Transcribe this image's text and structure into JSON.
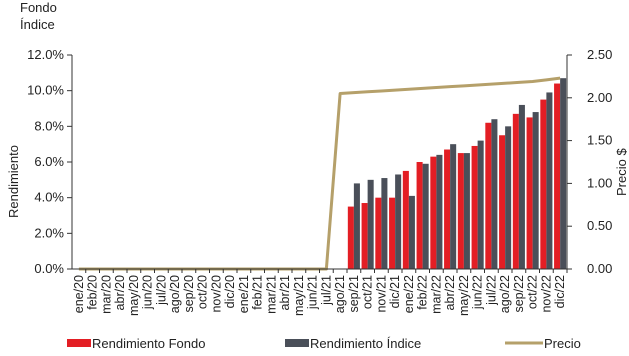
{
  "chart_data": {
    "type": "bar+line",
    "top_left_label_line1": "Fondo",
    "top_left_label_line2": "Índice",
    "ylabel_left": "Rendimiento",
    "ylabel_right": "Precio $",
    "y_left_ticks": [
      "0.0%",
      "2.0%",
      "4.0%",
      "6.0%",
      "8.0%",
      "10.0%",
      "12.0%"
    ],
    "y_right_ticks": [
      "0.00",
      "0.50",
      "1.00",
      "1.50",
      "2.00",
      "2.50"
    ],
    "ylim_left": [
      0,
      12
    ],
    "ylim_right": [
      0,
      2.5
    ],
    "categories": [
      "ene/20",
      "feb/20",
      "mar/20",
      "abr/20",
      "may/20",
      "jun/20",
      "jul/20",
      "ago/20",
      "sep/20",
      "oct/20",
      "nov/20",
      "dic/20",
      "ene/21",
      "feb/21",
      "mar/21",
      "abr/21",
      "may/21",
      "jun/21",
      "jul/21",
      "ago/21",
      "sep/21",
      "oct/21",
      "nov/21",
      "dic/21",
      "ene/22",
      "feb/22",
      "mar/22",
      "abr/22",
      "may/22",
      "jun/22",
      "jul/22",
      "ago/22",
      "sep/22",
      "oct/22",
      "nov/22",
      "dic/22"
    ],
    "series": [
      {
        "name": "Rendimiento Fondo",
        "type": "bar",
        "axis": "left",
        "color": "#e31e24",
        "values": [
          0,
          0,
          0,
          0,
          0,
          0,
          0,
          0,
          0,
          0,
          0,
          0,
          0,
          0,
          0,
          0,
          0,
          0,
          0,
          0,
          3.5,
          3.7,
          4.0,
          4.0,
          5.5,
          6.0,
          6.3,
          6.7,
          6.5,
          6.9,
          8.2,
          7.5,
          8.7,
          8.5,
          9.5,
          10.4
        ]
      },
      {
        "name": "Rendimiento Índice",
        "type": "bar",
        "axis": "left",
        "color": "#4a4f59",
        "values": [
          0,
          0,
          0,
          0,
          0,
          0,
          0,
          0,
          0,
          0,
          0,
          0,
          0,
          0,
          0,
          0,
          0,
          0,
          0,
          0,
          4.8,
          5.0,
          5.1,
          5.3,
          4.1,
          5.9,
          6.4,
          7.0,
          6.5,
          7.2,
          8.4,
          8.0,
          9.2,
          8.8,
          9.9,
          10.7
        ]
      },
      {
        "name": "Precio",
        "type": "line",
        "axis": "right",
        "color": "#b5a06a",
        "values": [
          0,
          0,
          0,
          0,
          0,
          0,
          0,
          0,
          0,
          0,
          0,
          0,
          0,
          0,
          0,
          0,
          0,
          0,
          0,
          2.05,
          2.06,
          2.07,
          2.08,
          2.09,
          2.1,
          2.11,
          2.12,
          2.13,
          2.14,
          2.15,
          2.16,
          2.17,
          2.18,
          2.19,
          2.21,
          2.23
        ]
      }
    ]
  }
}
